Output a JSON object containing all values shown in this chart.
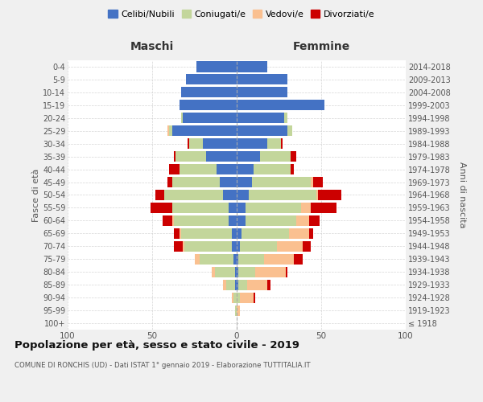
{
  "age_groups": [
    "100+",
    "95-99",
    "90-94",
    "85-89",
    "80-84",
    "75-79",
    "70-74",
    "65-69",
    "60-64",
    "55-59",
    "50-54",
    "45-49",
    "40-44",
    "35-39",
    "30-34",
    "25-29",
    "20-24",
    "15-19",
    "10-14",
    "5-9",
    "0-4"
  ],
  "birth_years": [
    "≤ 1918",
    "1919-1923",
    "1924-1928",
    "1929-1933",
    "1934-1938",
    "1939-1943",
    "1944-1948",
    "1949-1953",
    "1954-1958",
    "1959-1963",
    "1964-1968",
    "1969-1973",
    "1974-1978",
    "1979-1983",
    "1984-1988",
    "1989-1993",
    "1994-1998",
    "1999-2003",
    "2004-2008",
    "2009-2013",
    "2014-2018"
  ],
  "maschi": {
    "celibi": [
      0,
      0,
      0,
      1,
      1,
      2,
      3,
      3,
      5,
      5,
      8,
      10,
      12,
      18,
      20,
      38,
      32,
      34,
      33,
      30,
      24
    ],
    "coniugati": [
      0,
      1,
      2,
      5,
      12,
      20,
      28,
      30,
      32,
      33,
      35,
      28,
      22,
      18,
      8,
      2,
      1,
      0,
      0,
      0,
      0
    ],
    "vedovi": [
      0,
      0,
      1,
      2,
      2,
      3,
      1,
      1,
      1,
      0,
      0,
      0,
      0,
      0,
      0,
      1,
      0,
      0,
      0,
      0,
      0
    ],
    "divorziati": [
      0,
      0,
      0,
      0,
      0,
      0,
      5,
      3,
      6,
      13,
      5,
      3,
      6,
      1,
      1,
      0,
      0,
      0,
      0,
      0,
      0
    ]
  },
  "femmine": {
    "nubili": [
      0,
      0,
      0,
      1,
      1,
      1,
      2,
      3,
      5,
      5,
      7,
      9,
      10,
      14,
      18,
      30,
      28,
      52,
      30,
      30,
      18
    ],
    "coniugate": [
      0,
      0,
      2,
      5,
      10,
      15,
      22,
      28,
      30,
      33,
      40,
      35,
      22,
      18,
      8,
      3,
      2,
      0,
      0,
      0,
      0
    ],
    "vedove": [
      0,
      2,
      8,
      12,
      18,
      18,
      15,
      12,
      8,
      6,
      1,
      1,
      0,
      0,
      0,
      0,
      0,
      0,
      0,
      0,
      0
    ],
    "divorziate": [
      0,
      0,
      1,
      2,
      1,
      5,
      5,
      2,
      6,
      15,
      14,
      6,
      2,
      3,
      1,
      0,
      0,
      0,
      0,
      0,
      0
    ]
  },
  "colors": {
    "celibi": "#4472c4",
    "coniugati": "#c3d69b",
    "vedovi": "#fac090",
    "divorziati": "#cc0000"
  },
  "xlim": 100,
  "title": "Popolazione per età, sesso e stato civile - 2019",
  "subtitle": "COMUNE DI RONCHIS (UD) - Dati ISTAT 1° gennaio 2019 - Elaborazione TUTTITALIA.IT",
  "ylabel": "Fasce di età",
  "ylabel_right": "Anni di nascita",
  "xlabel_maschi": "Maschi",
  "xlabel_femmine": "Femmine",
  "legend_labels": [
    "Celibi/Nubili",
    "Coniugati/e",
    "Vedovi/e",
    "Divorziati/e"
  ],
  "bg_color": "#f0f0f0",
  "bar_bg_color": "#ffffff",
  "grid_color": "#cccccc"
}
